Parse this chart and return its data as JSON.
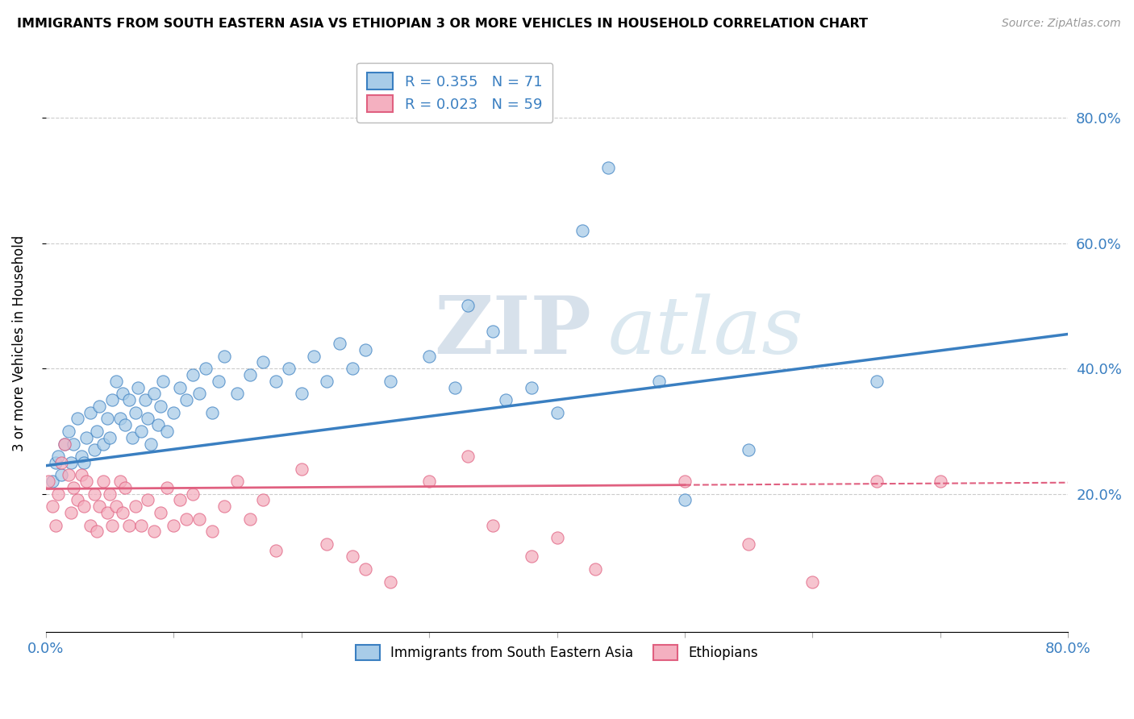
{
  "title": "IMMIGRANTS FROM SOUTH EASTERN ASIA VS ETHIOPIAN 3 OR MORE VEHICLES IN HOUSEHOLD CORRELATION CHART",
  "source": "Source: ZipAtlas.com",
  "ylabel": "3 or more Vehicles in Household",
  "xlim": [
    0.0,
    0.8
  ],
  "ylim": [
    -0.02,
    0.9
  ],
  "blue_R": 0.355,
  "blue_N": 71,
  "pink_R": 0.023,
  "pink_N": 59,
  "legend_label_blue": "Immigrants from South Eastern Asia",
  "legend_label_pink": "Ethiopians",
  "blue_color": "#a8cce8",
  "pink_color": "#f4b0c0",
  "blue_line_color": "#3a7fc1",
  "pink_line_color": "#e06080",
  "watermark": "ZIP",
  "watermark2": "atlas",
  "blue_scatter_x": [
    0.005,
    0.008,
    0.01,
    0.012,
    0.015,
    0.018,
    0.02,
    0.022,
    0.025,
    0.028,
    0.03,
    0.032,
    0.035,
    0.038,
    0.04,
    0.042,
    0.045,
    0.048,
    0.05,
    0.052,
    0.055,
    0.058,
    0.06,
    0.062,
    0.065,
    0.068,
    0.07,
    0.072,
    0.075,
    0.078,
    0.08,
    0.082,
    0.085,
    0.088,
    0.09,
    0.092,
    0.095,
    0.1,
    0.105,
    0.11,
    0.115,
    0.12,
    0.125,
    0.13,
    0.135,
    0.14,
    0.15,
    0.16,
    0.17,
    0.18,
    0.19,
    0.2,
    0.21,
    0.22,
    0.23,
    0.24,
    0.25,
    0.27,
    0.3,
    0.32,
    0.33,
    0.35,
    0.36,
    0.38,
    0.4,
    0.42,
    0.44,
    0.48,
    0.5,
    0.55,
    0.65
  ],
  "blue_scatter_y": [
    0.22,
    0.25,
    0.26,
    0.23,
    0.28,
    0.3,
    0.25,
    0.28,
    0.32,
    0.26,
    0.25,
    0.29,
    0.33,
    0.27,
    0.3,
    0.34,
    0.28,
    0.32,
    0.29,
    0.35,
    0.38,
    0.32,
    0.36,
    0.31,
    0.35,
    0.29,
    0.33,
    0.37,
    0.3,
    0.35,
    0.32,
    0.28,
    0.36,
    0.31,
    0.34,
    0.38,
    0.3,
    0.33,
    0.37,
    0.35,
    0.39,
    0.36,
    0.4,
    0.33,
    0.38,
    0.42,
    0.36,
    0.39,
    0.41,
    0.38,
    0.4,
    0.36,
    0.42,
    0.38,
    0.44,
    0.4,
    0.43,
    0.38,
    0.42,
    0.37,
    0.5,
    0.46,
    0.35,
    0.37,
    0.33,
    0.62,
    0.72,
    0.38,
    0.19,
    0.27,
    0.38
  ],
  "pink_scatter_x": [
    0.002,
    0.005,
    0.008,
    0.01,
    0.012,
    0.015,
    0.018,
    0.02,
    0.022,
    0.025,
    0.028,
    0.03,
    0.032,
    0.035,
    0.038,
    0.04,
    0.042,
    0.045,
    0.048,
    0.05,
    0.052,
    0.055,
    0.058,
    0.06,
    0.062,
    0.065,
    0.07,
    0.075,
    0.08,
    0.085,
    0.09,
    0.095,
    0.1,
    0.105,
    0.11,
    0.115,
    0.12,
    0.13,
    0.14,
    0.15,
    0.16,
    0.17,
    0.18,
    0.2,
    0.22,
    0.24,
    0.25,
    0.27,
    0.3,
    0.33,
    0.35,
    0.38,
    0.4,
    0.43,
    0.5,
    0.55,
    0.6,
    0.65,
    0.7
  ],
  "pink_scatter_y": [
    0.22,
    0.18,
    0.15,
    0.2,
    0.25,
    0.28,
    0.23,
    0.17,
    0.21,
    0.19,
    0.23,
    0.18,
    0.22,
    0.15,
    0.2,
    0.14,
    0.18,
    0.22,
    0.17,
    0.2,
    0.15,
    0.18,
    0.22,
    0.17,
    0.21,
    0.15,
    0.18,
    0.15,
    0.19,
    0.14,
    0.17,
    0.21,
    0.15,
    0.19,
    0.16,
    0.2,
    0.16,
    0.14,
    0.18,
    0.22,
    0.16,
    0.19,
    0.11,
    0.24,
    0.12,
    0.1,
    0.08,
    0.06,
    0.22,
    0.26,
    0.15,
    0.1,
    0.13,
    0.08,
    0.22,
    0.12,
    0.06,
    0.22,
    0.22
  ],
  "blue_line_start_y": 0.245,
  "blue_line_end_y": 0.455,
  "pink_line_start_y": 0.208,
  "pink_line_end_y": 0.218
}
